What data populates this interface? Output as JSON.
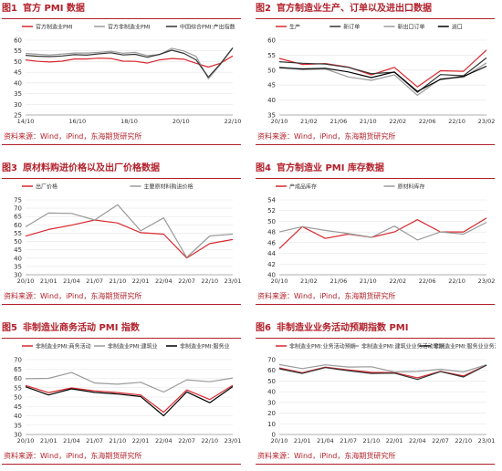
{
  "source_text": "资料来源：Wind，iPind，东海期货研究所",
  "panels": [
    {
      "num": "图1",
      "title": "官方 PMI 数据"
    },
    {
      "num": "图2",
      "title": "官方制造业生产、订单以及进出口数据"
    },
    {
      "num": "图3",
      "title": "原材料购进价格以及出厂价格数据"
    },
    {
      "num": "图4",
      "title": "官方制造业 PMI 库存数据"
    },
    {
      "num": "图5",
      "title": "非制造业商务活动 PMI 指数"
    },
    {
      "num": "图6",
      "title": "非制造业业务活动预期指数 PMI"
    }
  ],
  "colors": {
    "red": "#d9282e",
    "dark": "#333333",
    "gray": "#9a9a9a",
    "black": "#000000",
    "grid": "#e6e6e6",
    "accent": "#b2202a"
  },
  "chart_data": [
    {
      "type": "line",
      "x": [
        "14/10",
        "15/04",
        "15/10",
        "16/04",
        "16/10",
        "17/04",
        "17/10",
        "18/04",
        "18/10",
        "19/04",
        "19/10",
        "20/04",
        "20/10",
        "21/04",
        "21/10",
        "22/04",
        "22/10",
        "23/02"
      ],
      "xticks": [
        "14/10",
        "16/10",
        "18/10",
        "20/10",
        "22/10"
      ],
      "ylim": [
        25,
        60
      ],
      "yticks": [
        25,
        30,
        35,
        40,
        45,
        50,
        55,
        60
      ],
      "series": [
        {
          "name": "官方制造业PMI",
          "color": "red",
          "values": [
            50.8,
            50.1,
            49.8,
            50.2,
            51.2,
            51.2,
            51.6,
            51.4,
            50.2,
            50.1,
            49.3,
            50.8,
            51.4,
            51.1,
            49.2,
            47.4,
            49.2,
            52.6
          ]
        },
        {
          "name": "官方非制造业PMI",
          "color": "gray",
          "values": [
            53.8,
            53.4,
            53.1,
            53.5,
            54.0,
            54.0,
            54.3,
            54.8,
            53.9,
            54.3,
            52.8,
            53.2,
            56.2,
            54.9,
            52.4,
            41.9,
            48.7,
            56.3
          ]
        },
        {
          "name": "中国综合PMI:产出指数",
          "color": "dark",
          "values": [
            52.9,
            52.5,
            52.3,
            52.6,
            53.2,
            53.0,
            53.6,
            54.1,
            53.1,
            53.4,
            52.0,
            53.4,
            55.3,
            53.8,
            50.8,
            42.7,
            49.0,
            56.4
          ]
        }
      ]
    },
    {
      "type": "line",
      "x": [
        "20/10",
        "21/01",
        "21/04",
        "21/07",
        "21/10",
        "22/01",
        "22/04",
        "22/07",
        "22/10",
        "23/02"
      ],
      "xticks": [
        "20/10",
        "21/02",
        "21/06",
        "21/10",
        "22/02",
        "22/06",
        "22/10",
        "23/02"
      ],
      "ylim": [
        35,
        60
      ],
      "yticks": [
        35,
        40,
        45,
        50,
        55,
        60
      ],
      "series": [
        {
          "name": "生产",
          "color": "red",
          "values": [
            53.9,
            51.9,
            52.2,
            51.0,
            48.4,
            50.9,
            44.4,
            49.8,
            49.6,
            56.7
          ]
        },
        {
          "name": "新订单",
          "color": "dark",
          "values": [
            52.8,
            52.3,
            52.0,
            50.9,
            48.8,
            49.3,
            42.6,
            48.5,
            48.1,
            54.1
          ]
        },
        {
          "name": "新出口订单",
          "color": "gray",
          "values": [
            51.0,
            50.2,
            50.4,
            47.7,
            46.6,
            48.4,
            41.6,
            47.1,
            47.6,
            52.4
          ]
        },
        {
          "name": "进口",
          "color": "black",
          "values": [
            50.8,
            50.4,
            50.6,
            49.4,
            47.5,
            49.4,
            42.9,
            46.9,
            47.9,
            51.3
          ]
        }
      ]
    },
    {
      "type": "line",
      "x": [
        "20/10",
        "21/01",
        "21/04",
        "21/07",
        "21/10",
        "22/01",
        "22/04",
        "22/07",
        "22/10",
        "23/02"
      ],
      "xticks": [
        "20/10",
        "21/01",
        "21/04",
        "21/07",
        "21/10",
        "22/01",
        "22/04",
        "22/07",
        "22/10",
        "23/01"
      ],
      "ylim": [
        30,
        75
      ],
      "yticks": [
        30,
        35,
        40,
        45,
        50,
        55,
        60,
        65,
        70,
        75
      ],
      "series": [
        {
          "name": "出厂价格",
          "color": "red",
          "values": [
            53.2,
            57.2,
            59.8,
            62.9,
            61.1,
            55.3,
            54.4,
            40.1,
            48.7,
            51.2
          ]
        },
        {
          "name": "主要原材料购进价格",
          "color": "gray",
          "values": [
            58.8,
            67.1,
            66.9,
            62.9,
            72.1,
            56.4,
            64.2,
            40.4,
            53.3,
            54.4
          ]
        }
      ]
    },
    {
      "type": "line",
      "x": [
        "20/10",
        "21/01",
        "21/04",
        "21/07",
        "21/10",
        "22/01",
        "22/04",
        "22/07",
        "22/10",
        "23/02"
      ],
      "xticks": [
        "20/10",
        "21/02",
        "21/06",
        "21/10",
        "22/02",
        "22/06",
        "22/10",
        "23/02"
      ],
      "ylim": [
        40,
        54
      ],
      "yticks": [
        40,
        42,
        44,
        46,
        48,
        50,
        52,
        54
      ],
      "series": [
        {
          "name": "产成品库存",
          "color": "red",
          "values": [
            44.9,
            49.0,
            46.8,
            47.6,
            47.0,
            48.0,
            50.3,
            48.0,
            48.0,
            50.6
          ]
        },
        {
          "name": "原材料库存",
          "color": "gray",
          "values": [
            48.0,
            49.0,
            48.3,
            47.7,
            47.0,
            49.1,
            46.5,
            48.0,
            47.6,
            49.8
          ]
        }
      ]
    },
    {
      "type": "line",
      "x": [
        "20/10",
        "21/01",
        "21/04",
        "21/07",
        "21/10",
        "22/01",
        "22/04",
        "22/07",
        "22/10",
        "23/02"
      ],
      "xticks": [
        "20/10",
        "21/01",
        "21/04",
        "21/07",
        "21/10",
        "22/01",
        "22/04",
        "22/07",
        "22/10",
        "23/01"
      ],
      "ylim": [
        30,
        70
      ],
      "yticks": [
        30,
        35,
        40,
        45,
        50,
        55,
        60,
        65,
        70
      ],
      "series": [
        {
          "name": "非制造业PMI:商务活动",
          "color": "red",
          "values": [
            56.2,
            52.4,
            54.9,
            53.3,
            52.4,
            51.1,
            41.9,
            53.8,
            48.7,
            56.3
          ]
        },
        {
          "name": "非制造业PMI:建筑业",
          "color": "gray",
          "values": [
            59.8,
            60.0,
            63.1,
            57.5,
            56.9,
            57.9,
            52.7,
            59.2,
            58.2,
            60.2
          ]
        },
        {
          "name": "非制造业PMI:服务业",
          "color": "black",
          "values": [
            55.5,
            51.1,
            54.4,
            52.5,
            51.6,
            50.3,
            40.0,
            52.8,
            47.0,
            55.6
          ]
        }
      ]
    },
    {
      "type": "line",
      "x": [
        "20/10",
        "21/01",
        "21/04",
        "21/07",
        "21/10",
        "22/01",
        "22/04",
        "22/07",
        "22/10",
        "23/02"
      ],
      "xticks": [
        "20/10",
        "21/01",
        "21/04",
        "21/07",
        "21/10",
        "22/01",
        "22/04",
        "22/07",
        "22/10",
        "23/01"
      ],
      "ylim": [
        0,
        70
      ],
      "yticks": [
        0,
        10,
        20,
        30,
        40,
        50,
        60,
        70
      ],
      "series": [
        {
          "name": "非制造业PMI:业务活动预期",
          "color": "red",
          "values": [
            62.2,
            57.8,
            63.0,
            60.4,
            58.1,
            57.9,
            53.0,
            59.1,
            54.7,
            64.9
          ]
        },
        {
          "name": "非制造业PMI:建筑业业务活动预期",
          "color": "gray",
          "values": [
            65.4,
            61.6,
            65.1,
            63.1,
            63.3,
            58.5,
            59.0,
            61.0,
            58.5,
            65.2
          ]
        },
        {
          "name": "非制造业PMI:服务业业务活动预期",
          "color": "dark",
          "values": [
            61.5,
            57.1,
            62.6,
            59.7,
            57.1,
            57.4,
            51.5,
            58.8,
            53.8,
            64.8
          ]
        }
      ]
    }
  ]
}
